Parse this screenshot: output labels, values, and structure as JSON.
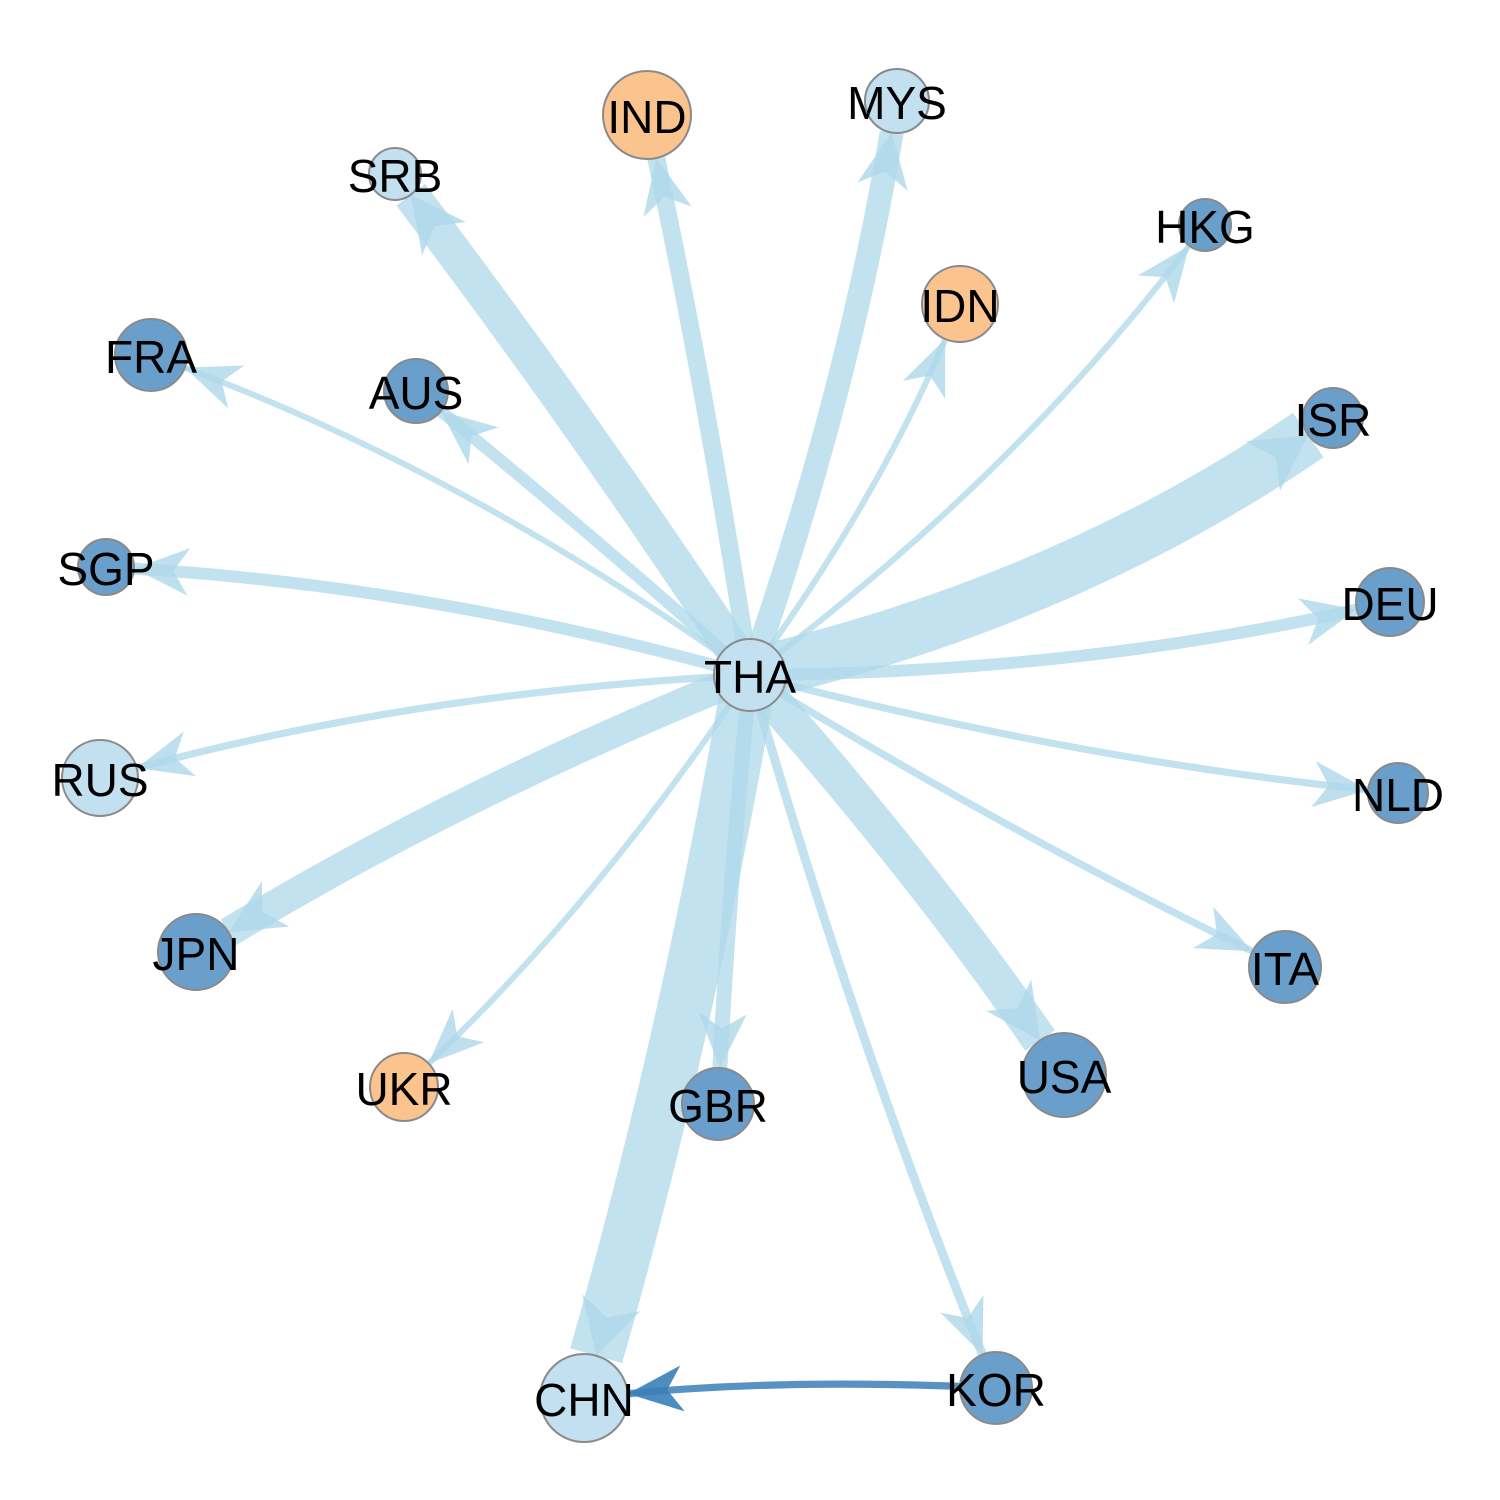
{
  "colors": {
    "edge_light": "#aed8ea",
    "edge_dark": "#3a7fb8",
    "node_dark": "#6a9fcb",
    "node_light": "#c2e0ef",
    "node_orange": "#fbc38e",
    "node_stroke": "#8a8a8a"
  },
  "nodes": [
    {
      "id": "THA",
      "label": "THA",
      "color": "light"
    },
    {
      "id": "IND",
      "label": "IND",
      "color": "orange"
    },
    {
      "id": "MYS",
      "label": "MYS",
      "color": "light"
    },
    {
      "id": "SRB",
      "label": "SRB",
      "color": "light"
    },
    {
      "id": "HKG",
      "label": "HKG",
      "color": "dark"
    },
    {
      "id": "IDN",
      "label": "IDN",
      "color": "orange"
    },
    {
      "id": "FRA",
      "label": "FRA",
      "color": "dark"
    },
    {
      "id": "AUS",
      "label": "AUS",
      "color": "dark"
    },
    {
      "id": "ISR",
      "label": "ISR",
      "color": "dark"
    },
    {
      "id": "SGP",
      "label": "SGP",
      "color": "dark"
    },
    {
      "id": "DEU",
      "label": "DEU",
      "color": "dark"
    },
    {
      "id": "RUS",
      "label": "RUS",
      "color": "light"
    },
    {
      "id": "NLD",
      "label": "NLD",
      "color": "dark"
    },
    {
      "id": "JPN",
      "label": "JPN",
      "color": "dark"
    },
    {
      "id": "ITA",
      "label": "ITA",
      "color": "dark"
    },
    {
      "id": "UKR",
      "label": "UKR",
      "color": "orange"
    },
    {
      "id": "GBR",
      "label": "GBR",
      "color": "dark"
    },
    {
      "id": "USA",
      "label": "USA",
      "color": "dark"
    },
    {
      "id": "CHN",
      "label": "CHN",
      "color": "light"
    },
    {
      "id": "KOR",
      "label": "KOR",
      "color": "dark"
    }
  ],
  "edges": [
    {
      "from": "THA",
      "to": "ISR",
      "weight": 9,
      "color": "light"
    },
    {
      "from": "THA",
      "to": "CHN",
      "weight": 9,
      "color": "light"
    },
    {
      "from": "THA",
      "to": "SRB",
      "weight": 6,
      "color": "light"
    },
    {
      "from": "THA",
      "to": "USA",
      "weight": 6,
      "color": "light"
    },
    {
      "from": "THA",
      "to": "JPN",
      "weight": 5,
      "color": "light"
    },
    {
      "from": "THA",
      "to": "MYS",
      "weight": 4,
      "color": "light"
    },
    {
      "from": "THA",
      "to": "IND",
      "weight": 3,
      "color": "light"
    },
    {
      "from": "THA",
      "to": "GBR",
      "weight": 2.5,
      "color": "light"
    },
    {
      "from": "THA",
      "to": "DEU",
      "weight": 2,
      "color": "light"
    },
    {
      "from": "THA",
      "to": "AUS",
      "weight": 2,
      "color": "light"
    },
    {
      "from": "THA",
      "to": "SGP",
      "weight": 2,
      "color": "light"
    },
    {
      "from": "THA",
      "to": "KOR",
      "weight": 1.5,
      "color": "light"
    },
    {
      "from": "THA",
      "to": "NLD",
      "weight": 1.2,
      "color": "light"
    },
    {
      "from": "THA",
      "to": "ITA",
      "weight": 1.2,
      "color": "light"
    },
    {
      "from": "THA",
      "to": "RUS",
      "weight": 1.2,
      "color": "light"
    },
    {
      "from": "THA",
      "to": "FRA",
      "weight": 1,
      "color": "light"
    },
    {
      "from": "THA",
      "to": "HKG",
      "weight": 1,
      "color": "light"
    },
    {
      "from": "THA",
      "to": "IDN",
      "weight": 1,
      "color": "light"
    },
    {
      "from": "THA",
      "to": "UKR",
      "weight": 1,
      "color": "light"
    },
    {
      "from": "KOR",
      "to": "CHN",
      "weight": 1.2,
      "color": "dark"
    }
  ]
}
